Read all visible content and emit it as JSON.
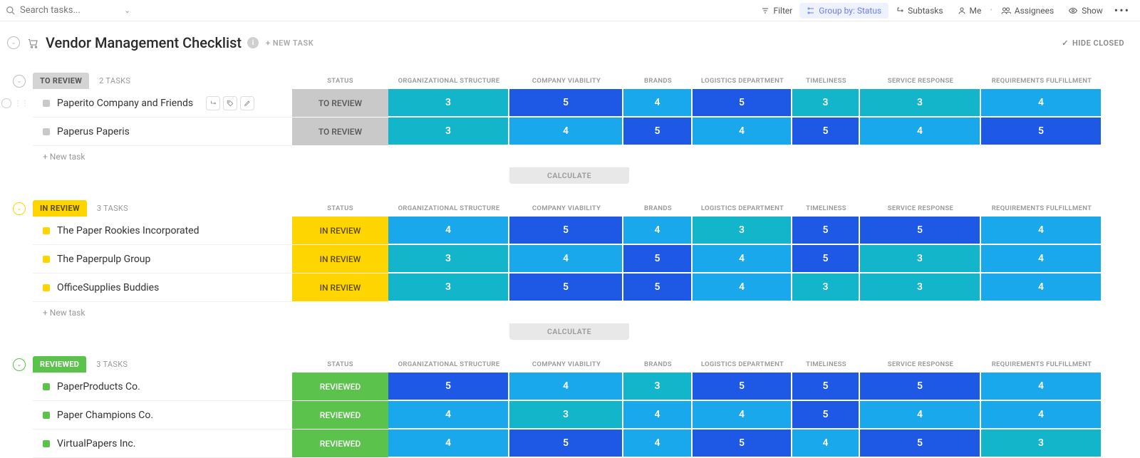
{
  "search": {
    "placeholder": "Search tasks..."
  },
  "toolbar": {
    "filter": "Filter",
    "group_by": "Group by: Status",
    "subtasks": "Subtasks",
    "me": "Me",
    "assignees": "Assignees",
    "show": "Show"
  },
  "header": {
    "title": "Vendor Management Checklist",
    "new_task": "+ NEW TASK",
    "hide_closed": "HIDE CLOSED"
  },
  "columns": {
    "status": "STATUS",
    "c1": "ORGANIZATIONAL STRUCTURE",
    "c2": "COMPANY VIABILITY",
    "c3": "BRANDS",
    "c4": "LOGISTICS DEPARTMENT",
    "c5": "TIMELINESS",
    "c6": "SERVICE RESPONSE",
    "c7": "REQUIREMENTS FULFILLMENT"
  },
  "column_widths": {
    "status": 135,
    "c1": 170,
    "c2": 160,
    "c3": 97,
    "c4": 140,
    "c5": 95,
    "c6": 170,
    "c7": 170
  },
  "labels": {
    "new_task": "+ New task",
    "calculate": "CALCULATE",
    "tasks_suffix": "TASKS"
  },
  "score_colors": {
    "3": "#12b5c9",
    "4": "#1aa8ed",
    "5": "#1e59e6"
  },
  "status_styles": {
    "TO REVIEW": {
      "pill_bg": "#d4d4d4",
      "pill_fg": "#555555",
      "circle": "#bbbbbb",
      "square": "#c9c9c9",
      "cell_bg": "#c9c9c9",
      "cell_fg": "#555555"
    },
    "IN REVIEW": {
      "pill_bg": "#ffd500",
      "pill_fg": "#5a4a00",
      "circle": "#ffd500",
      "square": "#ffd500",
      "cell_bg": "#ffd500",
      "cell_fg": "#5a4a00"
    },
    "REVIEWED": {
      "pill_bg": "#5bc24c",
      "pill_fg": "#ffffff",
      "circle": "#5bc24c",
      "square": "#5bc24c",
      "cell_bg": "#5bc24c",
      "cell_fg": "#ffffff"
    }
  },
  "groups": [
    {
      "status": "TO REVIEW",
      "count": "2 TASKS",
      "show_new_task": true,
      "show_calculate": true,
      "tasks": [
        {
          "name": "Paperito Company and Friends",
          "show_actions": true,
          "scores": [
            3,
            5,
            4,
            5,
            3,
            3,
            4
          ]
        },
        {
          "name": "Paperus Paperis",
          "scores": [
            3,
            4,
            5,
            4,
            5,
            4,
            5
          ]
        }
      ]
    },
    {
      "status": "IN REVIEW",
      "count": "3 TASKS",
      "show_new_task": true,
      "show_calculate": true,
      "tasks": [
        {
          "name": "The Paper Rookies Incorporated",
          "scores": [
            4,
            5,
            4,
            3,
            5,
            5,
            4
          ]
        },
        {
          "name": "The Paperpulp Group",
          "scores": [
            3,
            4,
            5,
            4,
            5,
            3,
            4
          ]
        },
        {
          "name": "OfficeSupplies Buddies",
          "scores": [
            3,
            5,
            5,
            4,
            3,
            3,
            4
          ]
        }
      ]
    },
    {
      "status": "REVIEWED",
      "count": "3 TASKS",
      "show_new_task": false,
      "show_calculate": false,
      "tasks": [
        {
          "name": "PaperProducts Co.",
          "scores": [
            5,
            4,
            3,
            5,
            5,
            5,
            4
          ]
        },
        {
          "name": "Paper Champions Co.",
          "scores": [
            4,
            3,
            4,
            4,
            5,
            4,
            4
          ]
        },
        {
          "name": "VirtualPapers Inc.",
          "scores": [
            4,
            5,
            4,
            5,
            4,
            5,
            3
          ]
        }
      ]
    }
  ]
}
